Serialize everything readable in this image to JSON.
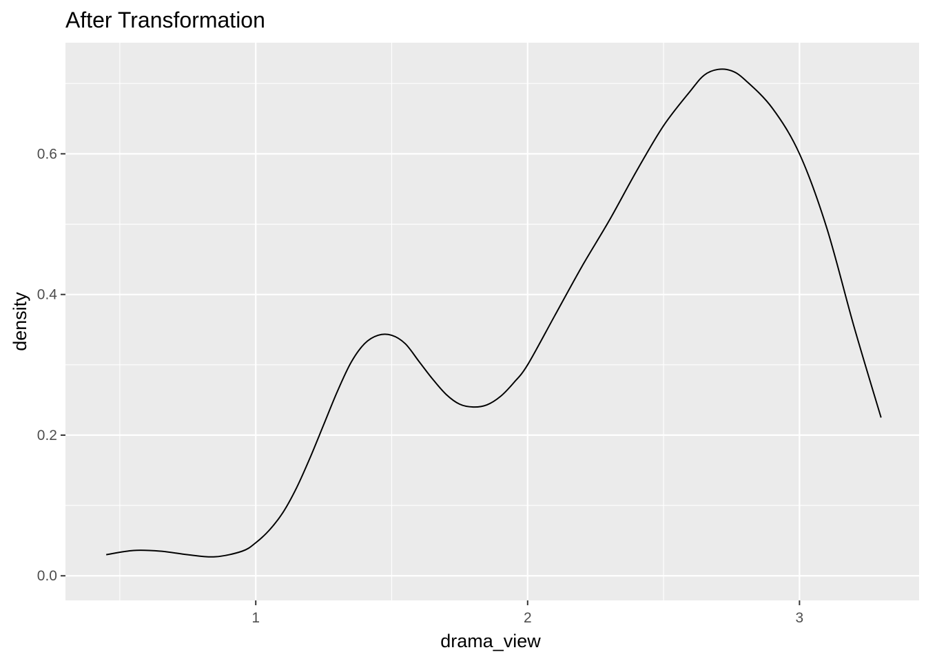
{
  "chart_data": {
    "type": "line",
    "title": "After Transformation",
    "xlabel": "drama_view",
    "ylabel": "density",
    "xlim": [
      0.3,
      3.44
    ],
    "ylim": [
      -0.035,
      0.758
    ],
    "x_ticks": [
      1,
      2,
      3
    ],
    "x_tick_labels": [
      "1",
      "2",
      "3"
    ],
    "x_minor_ticks": [
      0.5,
      1.5,
      2.5
    ],
    "y_ticks": [
      0.0,
      0.2,
      0.4,
      0.6
    ],
    "y_tick_labels": [
      "0.0",
      "0.2",
      "0.4",
      "0.6"
    ],
    "y_minor_ticks": [
      0.1,
      0.3,
      0.5,
      0.7
    ],
    "grid": true,
    "legend": "none",
    "colors": {
      "panel": "#ebebeb",
      "grid": "#ffffff",
      "line": "#000000"
    },
    "series": [
      {
        "x": [
          0.45,
          0.55,
          0.65,
          0.75,
          0.85,
          0.95,
          1.0,
          1.05,
          1.1,
          1.15,
          1.2,
          1.25,
          1.3,
          1.35,
          1.4,
          1.45,
          1.5,
          1.55,
          1.6,
          1.65,
          1.7,
          1.75,
          1.8,
          1.85,
          1.9,
          1.95,
          2.0,
          2.1,
          2.2,
          2.3,
          2.4,
          2.5,
          2.6,
          2.65,
          2.7,
          2.75,
          2.8,
          2.9,
          3.0,
          3.1,
          3.2,
          3.3
        ],
        "y": [
          0.03,
          0.036,
          0.035,
          0.03,
          0.027,
          0.035,
          0.047,
          0.065,
          0.09,
          0.125,
          0.168,
          0.215,
          0.262,
          0.303,
          0.33,
          0.342,
          0.342,
          0.33,
          0.305,
          0.28,
          0.258,
          0.244,
          0.24,
          0.243,
          0.255,
          0.275,
          0.3,
          0.37,
          0.44,
          0.505,
          0.575,
          0.64,
          0.69,
          0.712,
          0.72,
          0.718,
          0.705,
          0.665,
          0.6,
          0.495,
          0.355,
          0.225
        ]
      }
    ]
  }
}
